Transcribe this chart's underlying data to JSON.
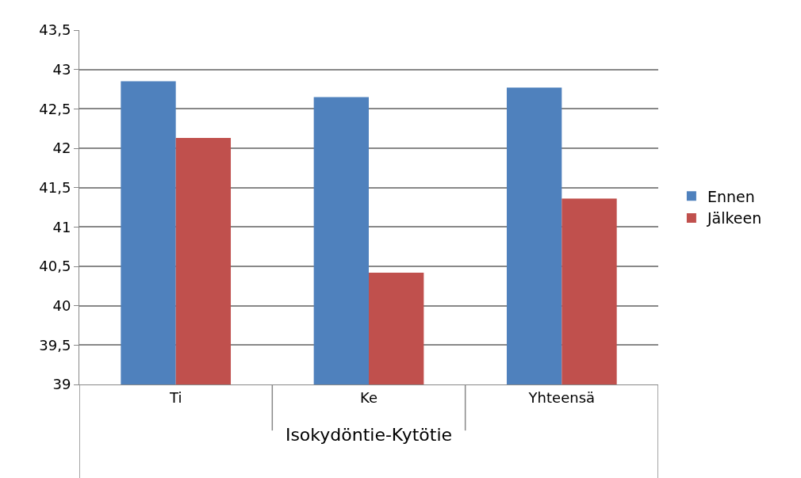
{
  "chart_data": {
    "type": "bar",
    "xlabel": "Isokydöntie-Kytötie",
    "categories": [
      "Ti",
      "Ke",
      "Yhteensä"
    ],
    "series": [
      {
        "name": "Ennen",
        "color": "#4f81bd",
        "values": [
          42.85,
          42.65,
          42.77
        ]
      },
      {
        "name": "Jälkeen",
        "color": "#c0504d",
        "values": [
          42.13,
          40.42,
          41.36
        ]
      }
    ],
    "ylim": [
      39,
      43.5
    ],
    "yticks": [
      {
        "value": 39,
        "label": "39"
      },
      {
        "value": 39.5,
        "label": "39,5"
      },
      {
        "value": 40,
        "label": "40"
      },
      {
        "value": 40.5,
        "label": "40,5"
      },
      {
        "value": 41,
        "label": "41"
      },
      {
        "value": 41.5,
        "label": "41,5"
      },
      {
        "value": 42,
        "label": "42"
      },
      {
        "value": 42.5,
        "label": "42,5"
      },
      {
        "value": 43,
        "label": "43"
      },
      {
        "value": 43.5,
        "label": "43,5"
      }
    ],
    "grid": "y",
    "legend": "right"
  }
}
